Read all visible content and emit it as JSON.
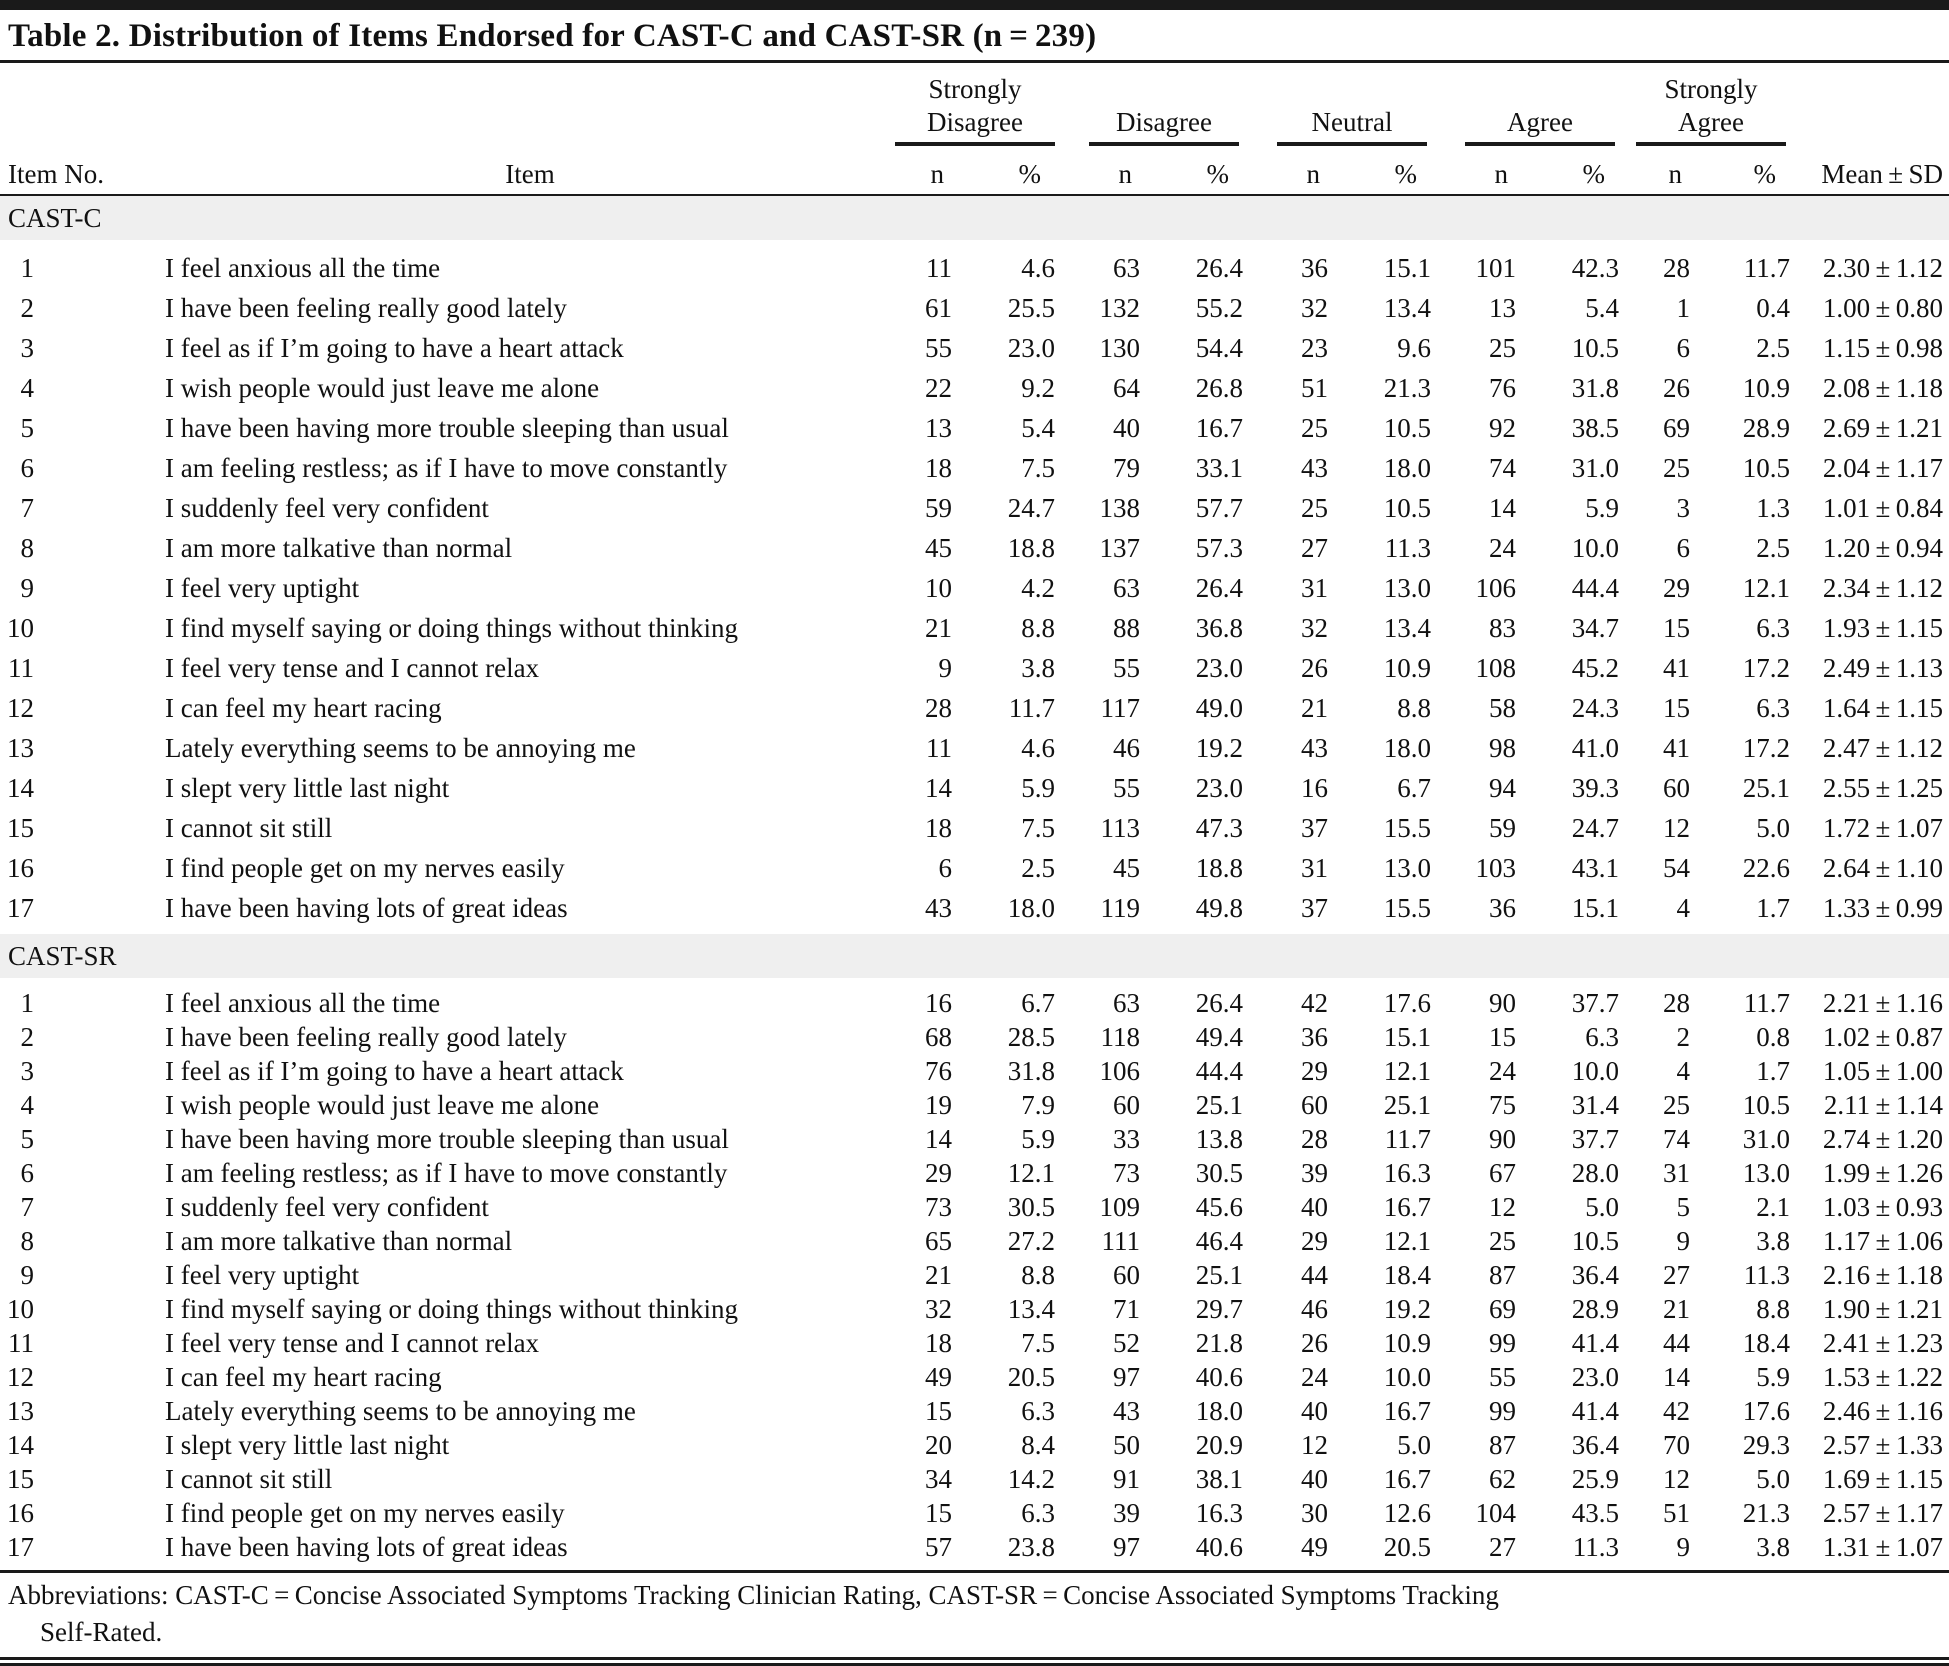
{
  "table": {
    "title": "Table 2. Distribution of Items Endorsed for CAST-C and CAST-SR (n = 239)",
    "header": {
      "item_no": "Item No.",
      "item": "Item",
      "n": "n",
      "pct": "%",
      "mean_sd": "Mean ± SD",
      "groups": [
        {
          "line1": "Strongly",
          "line2": "Disagree"
        },
        {
          "line1": "",
          "line2": "Disagree"
        },
        {
          "line1": "",
          "line2": "Neutral"
        },
        {
          "line1": "",
          "line2": "Agree"
        },
        {
          "line1": "Strongly",
          "line2": "Agree"
        }
      ]
    },
    "colors": {
      "rule": "#1a1a1a",
      "section_band": "#efefef"
    },
    "sections": [
      {
        "name": "CAST-C",
        "rows": [
          {
            "no": "1",
            "item": "I feel anxious all the time",
            "values": [
              "11",
              "4.6",
              "63",
              "26.4",
              "36",
              "15.1",
              "101",
              "42.3",
              "28",
              "11.7"
            ],
            "mean_sd": "2.30 ± 1.12"
          },
          {
            "no": "2",
            "item": "I have been feeling really good lately",
            "values": [
              "61",
              "25.5",
              "132",
              "55.2",
              "32",
              "13.4",
              "13",
              "5.4",
              "1",
              "0.4"
            ],
            "mean_sd": "1.00 ± 0.80"
          },
          {
            "no": "3",
            "item": "I feel as if I’m going to have a heart attack",
            "values": [
              "55",
              "23.0",
              "130",
              "54.4",
              "23",
              "9.6",
              "25",
              "10.5",
              "6",
              "2.5"
            ],
            "mean_sd": "1.15 ± 0.98"
          },
          {
            "no": "4",
            "item": "I wish people would just leave me alone",
            "values": [
              "22",
              "9.2",
              "64",
              "26.8",
              "51",
              "21.3",
              "76",
              "31.8",
              "26",
              "10.9"
            ],
            "mean_sd": "2.08 ± 1.18"
          },
          {
            "no": "5",
            "item": "I have been having more trouble sleeping than usual",
            "values": [
              "13",
              "5.4",
              "40",
              "16.7",
              "25",
              "10.5",
              "92",
              "38.5",
              "69",
              "28.9"
            ],
            "mean_sd": "2.69 ± 1.21"
          },
          {
            "no": "6",
            "item": "I am feeling restless; as if I have to move constantly",
            "values": [
              "18",
              "7.5",
              "79",
              "33.1",
              "43",
              "18.0",
              "74",
              "31.0",
              "25",
              "10.5"
            ],
            "mean_sd": "2.04 ± 1.17"
          },
          {
            "no": "7",
            "item": "I suddenly feel very confident",
            "values": [
              "59",
              "24.7",
              "138",
              "57.7",
              "25",
              "10.5",
              "14",
              "5.9",
              "3",
              "1.3"
            ],
            "mean_sd": "1.01 ± 0.84"
          },
          {
            "no": "8",
            "item": "I am more talkative than normal",
            "values": [
              "45",
              "18.8",
              "137",
              "57.3",
              "27",
              "11.3",
              "24",
              "10.0",
              "6",
              "2.5"
            ],
            "mean_sd": "1.20 ± 0.94"
          },
          {
            "no": "9",
            "item": "I feel very uptight",
            "values": [
              "10",
              "4.2",
              "63",
              "26.4",
              "31",
              "13.0",
              "106",
              "44.4",
              "29",
              "12.1"
            ],
            "mean_sd": "2.34 ± 1.12"
          },
          {
            "no": "10",
            "item": "I find myself saying or doing things without thinking",
            "values": [
              "21",
              "8.8",
              "88",
              "36.8",
              "32",
              "13.4",
              "83",
              "34.7",
              "15",
              "6.3"
            ],
            "mean_sd": "1.93 ± 1.15"
          },
          {
            "no": "11",
            "item": "I feel very tense and I cannot relax",
            "values": [
              "9",
              "3.8",
              "55",
              "23.0",
              "26",
              "10.9",
              "108",
              "45.2",
              "41",
              "17.2"
            ],
            "mean_sd": "2.49 ± 1.13"
          },
          {
            "no": "12",
            "item": "I can feel my heart racing",
            "values": [
              "28",
              "11.7",
              "117",
              "49.0",
              "21",
              "8.8",
              "58",
              "24.3",
              "15",
              "6.3"
            ],
            "mean_sd": "1.64 ± 1.15"
          },
          {
            "no": "13",
            "item": "Lately everything seems to be annoying me",
            "values": [
              "11",
              "4.6",
              "46",
              "19.2",
              "43",
              "18.0",
              "98",
              "41.0",
              "41",
              "17.2"
            ],
            "mean_sd": "2.47 ± 1.12"
          },
          {
            "no": "14",
            "item": "I slept very little last night",
            "values": [
              "14",
              "5.9",
              "55",
              "23.0",
              "16",
              "6.7",
              "94",
              "39.3",
              "60",
              "25.1"
            ],
            "mean_sd": "2.55 ± 1.25"
          },
          {
            "no": "15",
            "item": "I cannot sit still",
            "values": [
              "18",
              "7.5",
              "113",
              "47.3",
              "37",
              "15.5",
              "59",
              "24.7",
              "12",
              "5.0"
            ],
            "mean_sd": "1.72 ± 1.07"
          },
          {
            "no": "16",
            "item": "I find people get on my nerves easily",
            "values": [
              "6",
              "2.5",
              "45",
              "18.8",
              "31",
              "13.0",
              "103",
              "43.1",
              "54",
              "22.6"
            ],
            "mean_sd": "2.64 ± 1.10"
          },
          {
            "no": "17",
            "item": "I have been having lots of great ideas",
            "values": [
              "43",
              "18.0",
              "119",
              "49.8",
              "37",
              "15.5",
              "36",
              "15.1",
              "4",
              "1.7"
            ],
            "mean_sd": "1.33 ± 0.99"
          }
        ]
      },
      {
        "name": "CAST-SR",
        "rows": [
          {
            "no": "1",
            "item": "I feel anxious all the time",
            "values": [
              "16",
              "6.7",
              "63",
              "26.4",
              "42",
              "17.6",
              "90",
              "37.7",
              "28",
              "11.7"
            ],
            "mean_sd": "2.21 ± 1.16"
          },
          {
            "no": "2",
            "item": "I have been feeling really good lately",
            "values": [
              "68",
              "28.5",
              "118",
              "49.4",
              "36",
              "15.1",
              "15",
              "6.3",
              "2",
              "0.8"
            ],
            "mean_sd": "1.02 ± 0.87"
          },
          {
            "no": "3",
            "item": "I feel as if I’m going to have a heart attack",
            "values": [
              "76",
              "31.8",
              "106",
              "44.4",
              "29",
              "12.1",
              "24",
              "10.0",
              "4",
              "1.7"
            ],
            "mean_sd": "1.05 ± 1.00"
          },
          {
            "no": "4",
            "item": "I wish people would just leave me alone",
            "values": [
              "19",
              "7.9",
              "60",
              "25.1",
              "60",
              "25.1",
              "75",
              "31.4",
              "25",
              "10.5"
            ],
            "mean_sd": "2.11 ± 1.14"
          },
          {
            "no": "5",
            "item": "I have been having more trouble sleeping than usual",
            "values": [
              "14",
              "5.9",
              "33",
              "13.8",
              "28",
              "11.7",
              "90",
              "37.7",
              "74",
              "31.0"
            ],
            "mean_sd": "2.74 ± 1.20"
          },
          {
            "no": "6",
            "item": "I am feeling restless; as if I have to move constantly",
            "values": [
              "29",
              "12.1",
              "73",
              "30.5",
              "39",
              "16.3",
              "67",
              "28.0",
              "31",
              "13.0"
            ],
            "mean_sd": "1.99 ± 1.26"
          },
          {
            "no": "7",
            "item": "I suddenly feel very confident",
            "values": [
              "73",
              "30.5",
              "109",
              "45.6",
              "40",
              "16.7",
              "12",
              "5.0",
              "5",
              "2.1"
            ],
            "mean_sd": "1.03 ± 0.93"
          },
          {
            "no": "8",
            "item": "I am more talkative than normal",
            "values": [
              "65",
              "27.2",
              "111",
              "46.4",
              "29",
              "12.1",
              "25",
              "10.5",
              "9",
              "3.8"
            ],
            "mean_sd": "1.17 ± 1.06"
          },
          {
            "no": "9",
            "item": "I feel very uptight",
            "values": [
              "21",
              "8.8",
              "60",
              "25.1",
              "44",
              "18.4",
              "87",
              "36.4",
              "27",
              "11.3"
            ],
            "mean_sd": "2.16 ± 1.18"
          },
          {
            "no": "10",
            "item": "I find myself saying or doing things without thinking",
            "values": [
              "32",
              "13.4",
              "71",
              "29.7",
              "46",
              "19.2",
              "69",
              "28.9",
              "21",
              "8.8"
            ],
            "mean_sd": "1.90 ± 1.21"
          },
          {
            "no": "11",
            "item": "I feel very tense and I cannot relax",
            "values": [
              "18",
              "7.5",
              "52",
              "21.8",
              "26",
              "10.9",
              "99",
              "41.4",
              "44",
              "18.4"
            ],
            "mean_sd": "2.41 ± 1.23"
          },
          {
            "no": "12",
            "item": "I can feel my heart racing",
            "values": [
              "49",
              "20.5",
              "97",
              "40.6",
              "24",
              "10.0",
              "55",
              "23.0",
              "14",
              "5.9"
            ],
            "mean_sd": "1.53 ± 1.22"
          },
          {
            "no": "13",
            "item": "Lately everything seems to be annoying me",
            "values": [
              "15",
              "6.3",
              "43",
              "18.0",
              "40",
              "16.7",
              "99",
              "41.4",
              "42",
              "17.6"
            ],
            "mean_sd": "2.46 ± 1.16"
          },
          {
            "no": "14",
            "item": "I slept very little last night",
            "values": [
              "20",
              "8.4",
              "50",
              "20.9",
              "12",
              "5.0",
              "87",
              "36.4",
              "70",
              "29.3"
            ],
            "mean_sd": "2.57 ± 1.33"
          },
          {
            "no": "15",
            "item": "I cannot sit still",
            "values": [
              "34",
              "14.2",
              "91",
              "38.1",
              "40",
              "16.7",
              "62",
              "25.9",
              "12",
              "5.0"
            ],
            "mean_sd": "1.69 ± 1.15"
          },
          {
            "no": "16",
            "item": "I find people get on my nerves easily",
            "values": [
              "15",
              "6.3",
              "39",
              "16.3",
              "30",
              "12.6",
              "104",
              "43.5",
              "51",
              "21.3"
            ],
            "mean_sd": "2.57 ± 1.17"
          },
          {
            "no": "17",
            "item": "I have been having lots of great ideas",
            "values": [
              "57",
              "23.8",
              "97",
              "40.6",
              "49",
              "20.5",
              "27",
              "11.3",
              "9",
              "3.8"
            ],
            "mean_sd": "1.31 ± 1.07"
          }
        ]
      }
    ],
    "footnote_line1": "Abbreviations: CAST-C = Concise Associated Symptoms Tracking Clinician Rating, CAST-SR = Concise Associated Symptoms Tracking",
    "footnote_line2": "Self-Rated."
  }
}
